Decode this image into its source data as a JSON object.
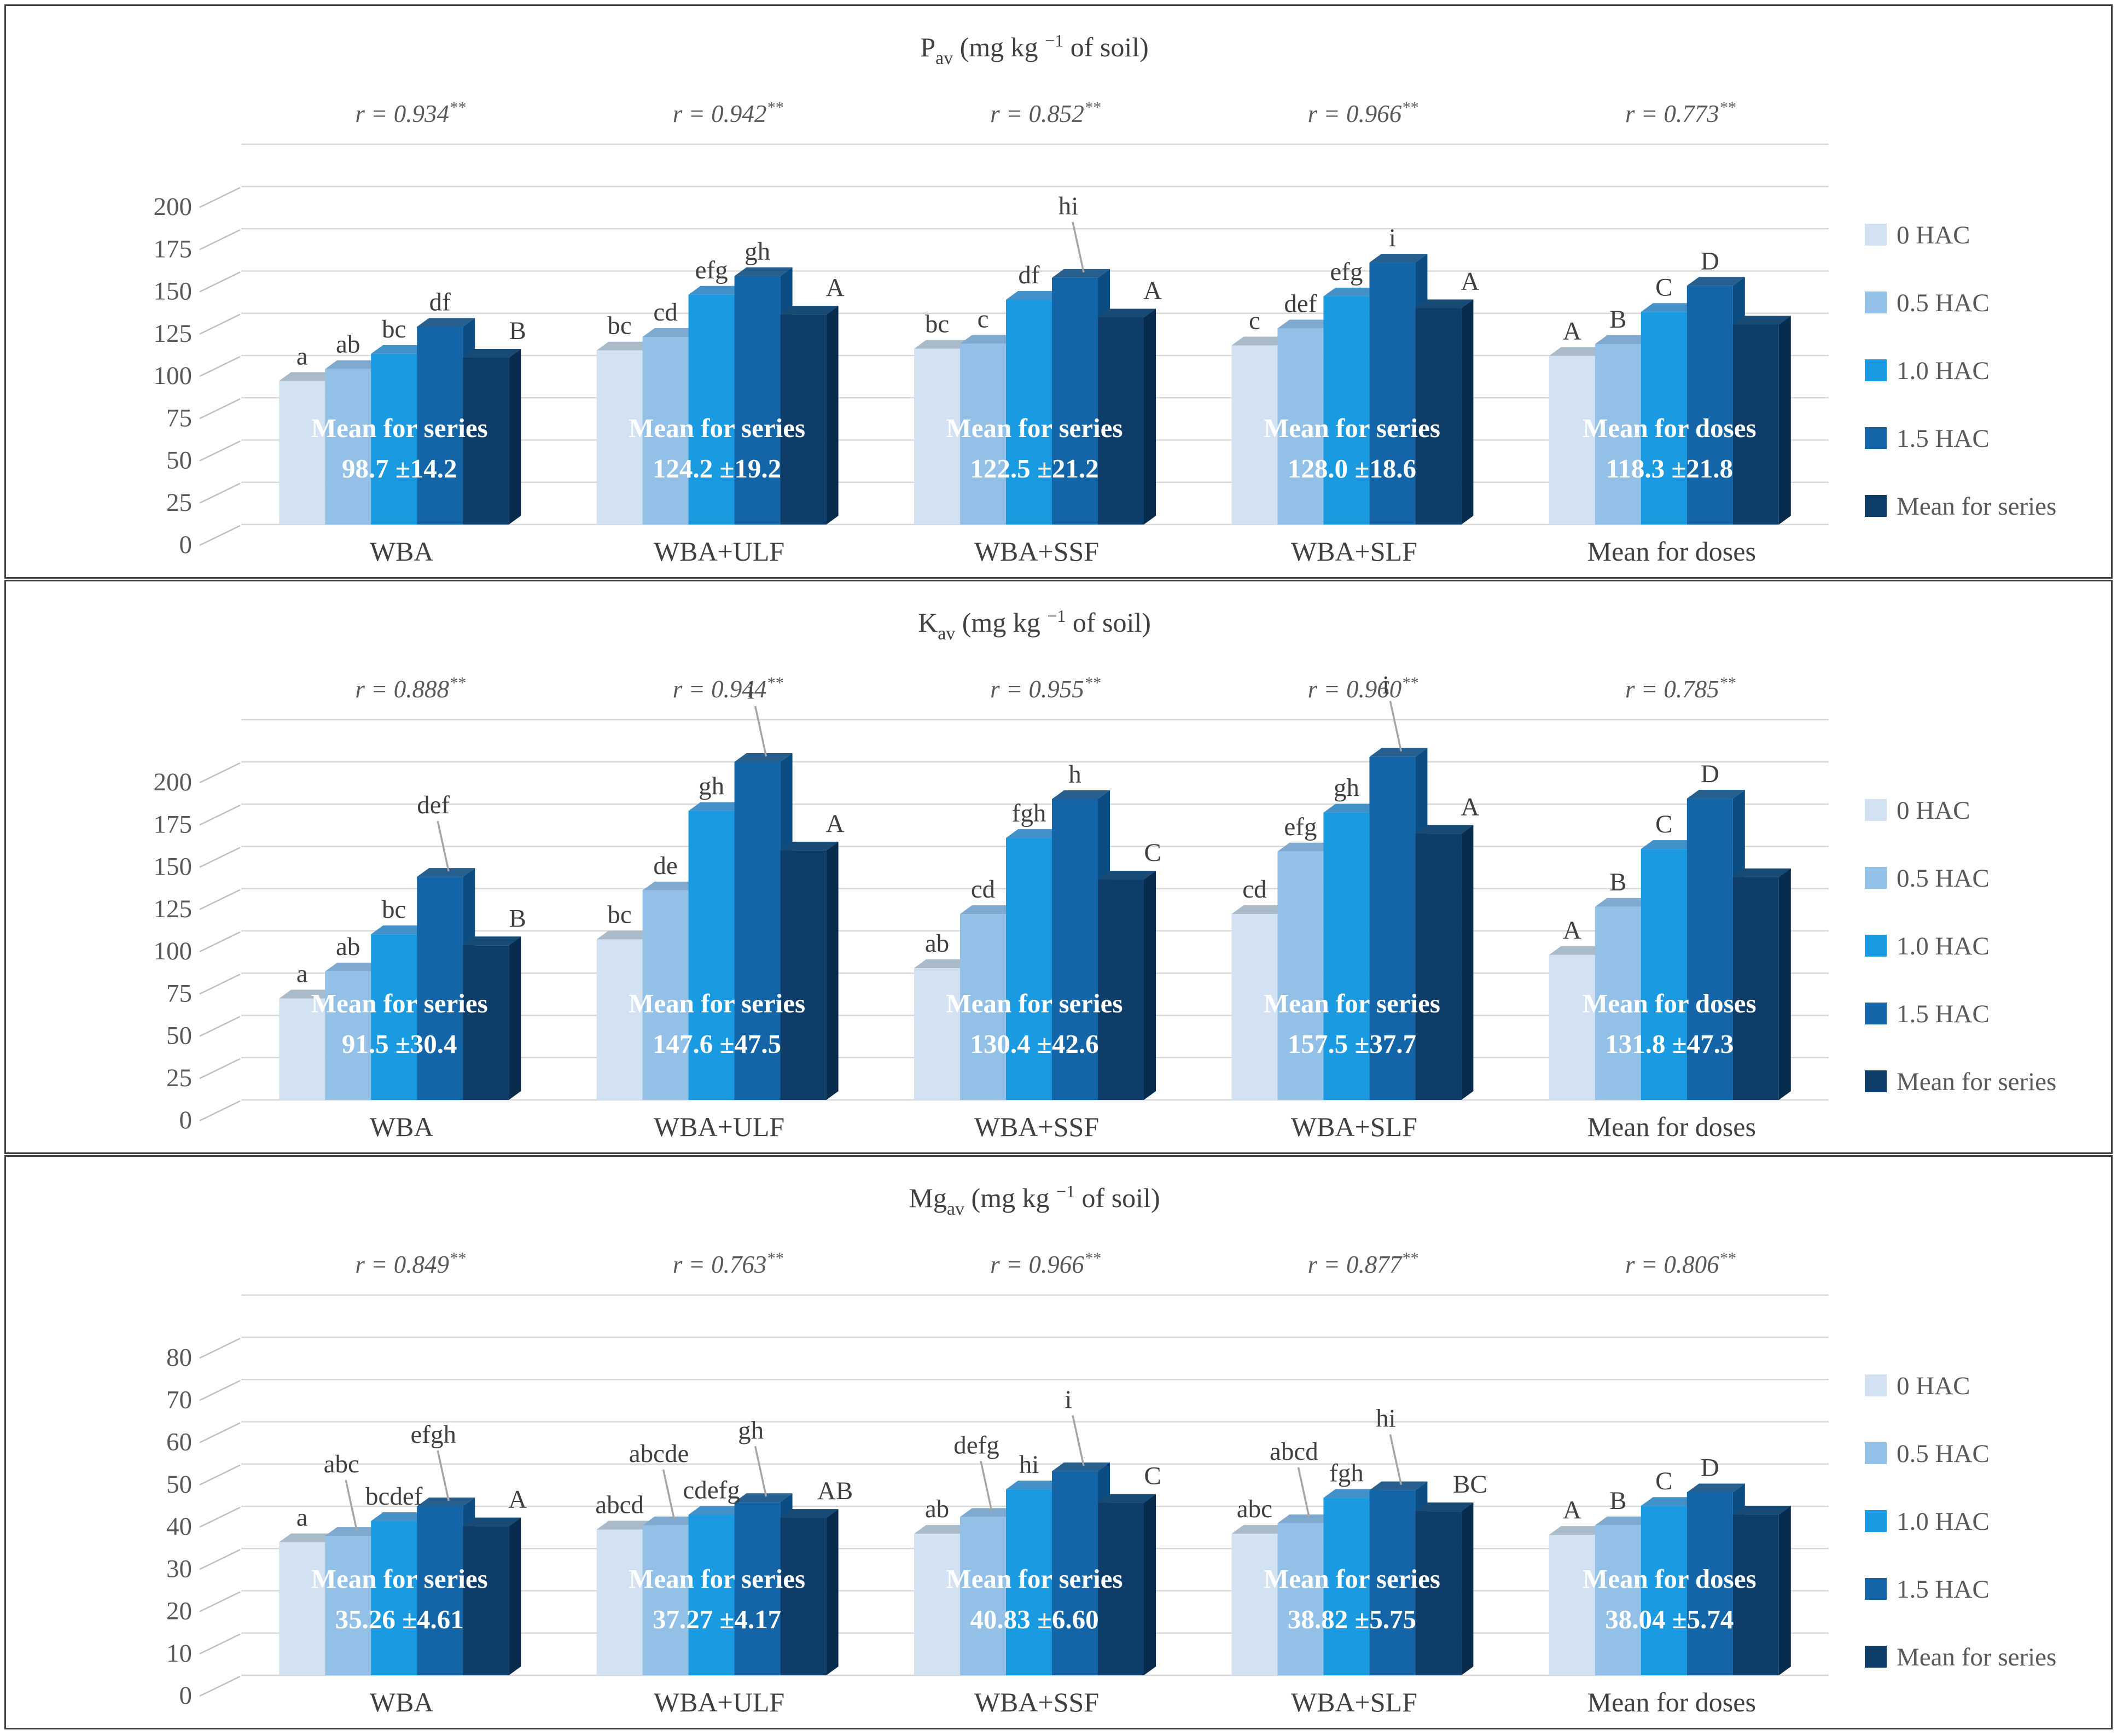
{
  "figure": {
    "kind": "three stacked 3-D clustered column charts",
    "categories": [
      "WBA",
      "WBA+ULF",
      "WBA+SSF",
      "WBA+SLF",
      "Mean for doses"
    ]
  },
  "legend": {
    "items": [
      {
        "label": "0 HAC",
        "color": "#d3e2f2"
      },
      {
        "label": "0.5 HAC",
        "color": "#92c0e7"
      },
      {
        "label": "1.0 HAC",
        "color": "#1a9ae0"
      },
      {
        "label": "1.5 HAC",
        "color": "#1365a7"
      },
      {
        "label": "Mean for series",
        "color": "#0d3d68"
      }
    ]
  },
  "chart_data": {
    "type": "bar",
    "series_names": [
      "0 HAC",
      "0.5 HAC",
      "1.0 HAC",
      "1.5 HAC",
      "Mean for series"
    ],
    "legend_position": "right",
    "grid": true,
    "colors": {
      "front": [
        "#d3e2f2",
        "#92c0e7",
        "#1a9ae0",
        "#1365a7",
        "#0d3d68"
      ],
      "top": [
        "#a9bac9",
        "#7fa9cf",
        "#4292c9",
        "#27608f",
        "#174a74"
      ],
      "side": [
        "#b6c9dc",
        "#6ea3d2",
        "#0e7ec2",
        "#0b4d82",
        "#082c4e"
      ]
    },
    "style": {
      "grid_color": "#d8d8d8",
      "axis_diag_color": "#bfbfbf",
      "tick_color": "#595959",
      "letter_color": "#3f3f3f",
      "category_color": "#404040",
      "r_color": "#595959",
      "title_color": "#404040",
      "mean_text_color": "#ffffff",
      "leader_color": "#a6a6a6"
    },
    "charts": [
      {
        "id": "pav",
        "title": {
          "main": "P",
          "sub": "av",
          "mid": " (mg kg ",
          "sup": "−1",
          "end": " of soil)"
        },
        "ylim": [
          0,
          200
        ],
        "ystep": 25,
        "groups": [
          {
            "category": "WBA",
            "r": "r = 0.934",
            "r_sup": "**",
            "values": [
              85,
              92,
              101,
              117,
              98.7
            ],
            "letters": [
              "a",
              "ab",
              "bc",
              "df",
              "B"
            ],
            "leaders": [
              0,
              0,
              0,
              0,
              0
            ],
            "mean_line1": "Mean for series",
            "mean_line2": "98.7 ±14.2"
          },
          {
            "category": "WBA+ULF",
            "r": "r = 0.942",
            "r_sup": "**",
            "values": [
              103,
              111,
              136,
              147,
              124.2
            ],
            "letters": [
              "bc",
              "cd",
              "efg",
              "gh",
              "A"
            ],
            "leaders": [
              0,
              0,
              0,
              0,
              0
            ],
            "mean_line1": "Mean for series",
            "mean_line2": "124.2 ±19.2"
          },
          {
            "category": "WBA+SSF",
            "r": "r = 0.852",
            "r_sup": "**",
            "values": [
              104,
              107,
              133,
              146,
              122.5
            ],
            "letters": [
              "bc",
              "c",
              "df",
              "hi",
              "A"
            ],
            "leaders": [
              0,
              0,
              0,
              1,
              0
            ],
            "mean_line1": "Mean for series",
            "mean_line2": "122.5 ±21.2"
          },
          {
            "category": "WBA+SLF",
            "r": "r = 0.966",
            "r_sup": "**",
            "values": [
              106,
              116,
              135,
              155,
              128.0
            ],
            "letters": [
              "c",
              "def",
              "efg",
              "i",
              "A"
            ],
            "leaders": [
              0,
              0,
              0,
              0,
              0
            ],
            "mean_line1": "Mean for series",
            "mean_line2": "128.0 ±18.6"
          },
          {
            "category": "Mean for doses",
            "r": "r = 0.773",
            "r_sup": "**",
            "values": [
              99.8,
              106.8,
              125.8,
              141.3,
              118.3
            ],
            "letters": [
              "A",
              "B",
              "C",
              "D",
              ""
            ],
            "leaders": [
              0,
              0,
              0,
              0,
              0
            ],
            "mean_line1": "Mean for doses",
            "mean_line2": "118.3 ±21.8"
          }
        ]
      },
      {
        "id": "kav",
        "title": {
          "main": "K",
          "sub": "av",
          "mid": " (mg kg ",
          "sup": "−1",
          "end": " of soil)"
        },
        "ylim": [
          0,
          200
        ],
        "ystep": 25,
        "groups": [
          {
            "category": "WBA",
            "r": "r = 0.888",
            "r_sup": "**",
            "values": [
              60,
              76,
              98,
              132,
              91.5
            ],
            "letters": [
              "a",
              "ab",
              "bc",
              "def",
              "B"
            ],
            "leaders": [
              0,
              0,
              0,
              1,
              0
            ],
            "mean_line1": "Mean for series",
            "mean_line2": "91.5 ±30.4"
          },
          {
            "category": "WBA+ULF",
            "r": "r = 0.944",
            "r_sup": "**",
            "values": [
              95,
              124,
              171,
              200,
              147.6
            ],
            "letters": [
              "bc",
              "de",
              "gh",
              "i",
              "A"
            ],
            "leaders": [
              0,
              0,
              0,
              1,
              0
            ],
            "mean_line1": "Mean for series",
            "mean_line2": "147.6 ±47.5"
          },
          {
            "category": "WBA+SSF",
            "r": "r = 0.955",
            "r_sup": "**",
            "values": [
              78,
              110,
              155,
              178,
              130.4
            ],
            "letters": [
              "ab",
              "cd",
              "fgh",
              "h",
              "C"
            ],
            "leaders": [
              0,
              0,
              0,
              0,
              0
            ],
            "mean_line1": "Mean for series",
            "mean_line2": "130.4 ±42.6"
          },
          {
            "category": "WBA+SLF",
            "r": "r = 0.960",
            "r_sup": "**",
            "values": [
              110,
              147,
              170,
              203,
              157.5
            ],
            "letters": [
              "cd",
              "efg",
              "gh",
              "i",
              "A"
            ],
            "leaders": [
              0,
              0,
              0,
              1,
              0
            ],
            "mean_line1": "Mean for series",
            "mean_line2": "157.5 ±37.7"
          },
          {
            "category": "Mean for doses",
            "r": "r = 0.785",
            "r_sup": "**",
            "values": [
              85.8,
              114.3,
              148.5,
              178.3,
              131.8
            ],
            "letters": [
              "A",
              "B",
              "C",
              "D",
              ""
            ],
            "leaders": [
              0,
              0,
              0,
              0,
              0
            ],
            "mean_line1": "Mean for doses",
            "mean_line2": "131.8 ±47.3"
          }
        ]
      },
      {
        "id": "mgav",
        "title": {
          "main": "Mg",
          "sub": "av",
          "mid": " (mg kg ",
          "sup": "−1",
          "end": " of soil)"
        },
        "ylim": [
          0,
          80
        ],
        "ystep": 10,
        "groups": [
          {
            "category": "WBA",
            "r": "r = 0.849",
            "r_sup": "**",
            "values": [
              31.5,
              33,
              36.5,
              40,
              35.26
            ],
            "letters": [
              "a",
              "abc",
              "bcdef",
              "efgh",
              "A"
            ],
            "leaders": [
              0,
              1,
              0,
              1,
              0
            ],
            "mean_line1": "Mean for series",
            "mean_line2": "35.26 ±4.61"
          },
          {
            "category": "WBA+ULF",
            "r": "r = 0.763",
            "r_sup": "**",
            "values": [
              34.5,
              35.5,
              38,
              41,
              37.27
            ],
            "letters": [
              "abcd",
              "abcde",
              "cdefg",
              "gh",
              "AB"
            ],
            "leaders": [
              0,
              1,
              0,
              1,
              0
            ],
            "mean_line1": "Mean for series",
            "mean_line2": "37.27 ±4.17"
          },
          {
            "category": "WBA+SSF",
            "r": "r = 0.966",
            "r_sup": "**",
            "values": [
              33.5,
              37.5,
              44,
              48.3,
              40.83
            ],
            "letters": [
              "ab",
              "defg",
              "hi",
              "i",
              "C"
            ],
            "leaders": [
              0,
              1,
              0,
              1,
              0
            ],
            "mean_line1": "Mean for series",
            "mean_line2": "40.83 ±6.60"
          },
          {
            "category": "WBA+SLF",
            "r": "r = 0.877",
            "r_sup": "**",
            "values": [
              33.5,
              36,
              42,
              43.8,
              38.82
            ],
            "letters": [
              "abc",
              "abcd",
              "fgh",
              "hi",
              "BC"
            ],
            "leaders": [
              0,
              1,
              0,
              1,
              0
            ],
            "mean_line1": "Mean for series",
            "mean_line2": "38.82 ±5.75"
          },
          {
            "category": "Mean for doses",
            "r": "r = 0.806",
            "r_sup": "**",
            "values": [
              33.25,
              35.5,
              40.1,
              43.3,
              38.04
            ],
            "letters": [
              "A",
              "B",
              "C",
              "D",
              ""
            ],
            "leaders": [
              0,
              0,
              0,
              0,
              0
            ],
            "mean_line1": "Mean for doses",
            "mean_line2": "38.04 ±5.74"
          }
        ]
      }
    ]
  }
}
